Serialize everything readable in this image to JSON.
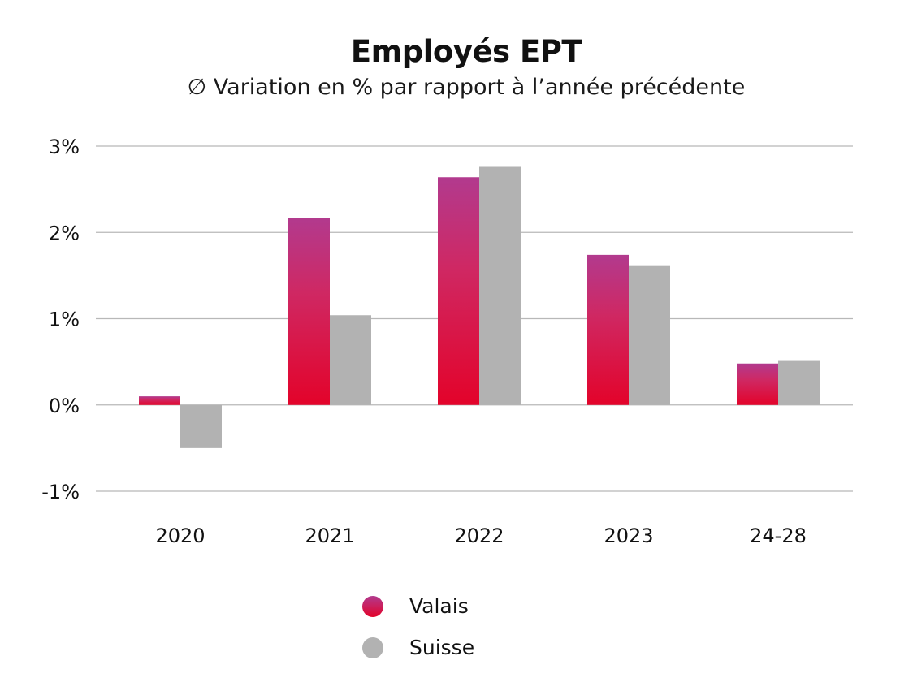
{
  "chart_data": {
    "type": "bar",
    "title": "Employés EPT",
    "subtitle": "∅ Variation en % par rapport à l’année précédente",
    "categories": [
      "2020",
      "2021",
      "2022",
      "2023",
      "24-28"
    ],
    "series": [
      {
        "name": "Valais",
        "values": [
          0.1,
          2.17,
          2.64,
          1.74,
          0.48
        ]
      },
      {
        "name": "Suisse",
        "values": [
          -0.5,
          1.04,
          2.76,
          1.61,
          0.51
        ]
      }
    ],
    "ylim": [
      -1,
      3
    ],
    "yticks": [
      3,
      2,
      1,
      0,
      -1
    ],
    "ytick_labels": [
      "3%",
      "2%",
      "1%",
      "0%",
      "-1%"
    ],
    "grid": true,
    "legend_position": "bottom",
    "colors": {
      "valais_top": "#b23a8e",
      "valais_bottom": "#e3032a",
      "suisse": "#b2b2b2",
      "grid": "#b8b8b8"
    }
  }
}
